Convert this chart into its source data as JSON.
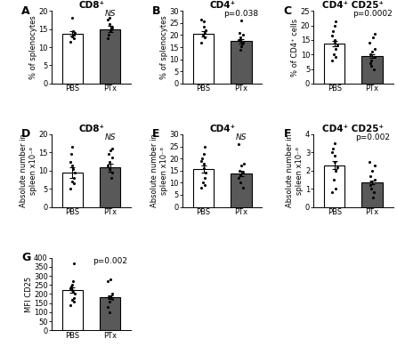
{
  "panels": {
    "A": {
      "title": "CD8⁺",
      "ylabel": "% of splenocytes",
      "ylim": [
        0,
        20
      ],
      "yticks": [
        0,
        5,
        10,
        15,
        20
      ],
      "bar_pbs": 13.8,
      "bar_ptx": 15.0,
      "err_pbs": 0.7,
      "err_ptx": 0.9,
      "pvalue": "NS",
      "dots_pbs": [
        11.5,
        12.5,
        13.0,
        13.5,
        14.0,
        14.5,
        18.0
      ],
      "dots_ptx": [
        12.5,
        13.5,
        14.5,
        15.0,
        15.5,
        16.5,
        17.5,
        18.0
      ]
    },
    "B": {
      "title": "CD4⁺",
      "ylabel": "% of splenocytes",
      "ylim": [
        0,
        30
      ],
      "yticks": [
        0,
        5,
        10,
        15,
        20,
        25,
        30
      ],
      "bar_pbs": 20.5,
      "bar_ptx": 17.5,
      "err_pbs": 1.2,
      "err_ptx": 0.9,
      "pvalue": "p=0.038",
      "dots_pbs": [
        17.0,
        19.0,
        20.0,
        21.0,
        22.0,
        23.5,
        25.5,
        26.5
      ],
      "dots_ptx": [
        14.0,
        15.5,
        16.5,
        17.0,
        17.5,
        18.0,
        19.0,
        20.0,
        21.0,
        26.0
      ]
    },
    "C": {
      "title": "CD4⁺ CD25⁺",
      "ylabel": "% of CD4⁺ cells",
      "ylim": [
        0,
        25
      ],
      "yticks": [
        0,
        5,
        10,
        15,
        20,
        25
      ],
      "bar_pbs": 13.8,
      "bar_ptx": 9.5,
      "err_pbs": 1.0,
      "err_ptx": 0.7,
      "pvalue": "p=0.0002",
      "dots_pbs": [
        8.0,
        9.0,
        10.0,
        12.0,
        13.0,
        14.0,
        15.0,
        16.5,
        18.0,
        20.0,
        21.5
      ],
      "dots_ptx": [
        5.0,
        6.0,
        7.0,
        8.0,
        9.0,
        10.0,
        11.0,
        12.0,
        14.0,
        16.0,
        17.0
      ]
    },
    "D": {
      "title": "CD8⁺",
      "ylabel": "Absolute number in\nspleen x10⁻⁶",
      "ylim": [
        0,
        20
      ],
      "yticks": [
        0,
        5,
        10,
        15,
        20
      ],
      "bar_pbs": 9.5,
      "bar_ptx": 10.8,
      "err_pbs": 1.4,
      "err_ptx": 1.1,
      "pvalue": "NS",
      "dots_pbs": [
        5.0,
        6.5,
        7.0,
        8.0,
        9.5,
        10.5,
        11.5,
        12.5,
        14.5,
        16.5
      ],
      "dots_ptx": [
        8.0,
        9.5,
        10.5,
        11.5,
        12.5,
        13.5,
        14.5,
        15.5,
        16.0
      ]
    },
    "E": {
      "title": "CD4⁺",
      "ylabel": "Absolute number in\nspleen x10⁻⁶",
      "ylim": [
        0,
        30
      ],
      "yticks": [
        0,
        5,
        10,
        15,
        20,
        25,
        30
      ],
      "bar_pbs": 15.8,
      "bar_ptx": 13.8,
      "err_pbs": 1.5,
      "err_ptx": 1.0,
      "pvalue": "NS",
      "dots_pbs": [
        8.0,
        9.0,
        10.0,
        12.0,
        14.0,
        16.0,
        18.0,
        19.0,
        20.0,
        22.0,
        25.0
      ],
      "dots_ptx": [
        8.0,
        10.0,
        12.0,
        13.0,
        14.0,
        15.0,
        17.0,
        18.0,
        26.0
      ]
    },
    "F": {
      "title": "CD4⁺ CD25⁺",
      "ylabel": "Absolute number in\nspleen x10⁻⁶",
      "ylim": [
        0,
        4
      ],
      "yticks": [
        0,
        1,
        2,
        3,
        4
      ],
      "bar_pbs": 2.3,
      "bar_ptx": 1.35,
      "err_pbs": 0.22,
      "err_ptx": 0.12,
      "pvalue": "p=0.002",
      "dots_pbs": [
        0.8,
        1.0,
        1.5,
        2.0,
        2.2,
        2.5,
        2.8,
        3.0,
        3.2,
        3.5
      ],
      "dots_ptx": [
        0.5,
        0.8,
        1.0,
        1.2,
        1.4,
        1.5,
        1.7,
        2.0,
        2.3,
        2.5
      ]
    },
    "G": {
      "title": "",
      "ylabel": "MFI CD25",
      "ylim": [
        0,
        400
      ],
      "yticks": [
        0,
        50,
        100,
        150,
        200,
        250,
        300,
        350,
        400
      ],
      "bar_pbs": 222,
      "bar_ptx": 185,
      "err_pbs": 15,
      "err_ptx": 10,
      "pvalue": "p=0.002",
      "dots_pbs": [
        140,
        160,
        170,
        180,
        200,
        210,
        220,
        230,
        240,
        250,
        270,
        370
      ],
      "dots_ptx": [
        100,
        130,
        160,
        175,
        185,
        190,
        200,
        270,
        280
      ]
    }
  },
  "bar_color_pbs": "#ffffff",
  "bar_color_ptx": "#595959",
  "bar_edgecolor": "#000000",
  "dot_color": "#000000",
  "dot_size": 5,
  "bar_width": 0.55,
  "capsize": 2.5,
  "font_size": 6.5,
  "title_font_size": 7.5,
  "label_font_size": 6.0,
  "tick_font_size": 6.0,
  "panel_label_size": 9
}
